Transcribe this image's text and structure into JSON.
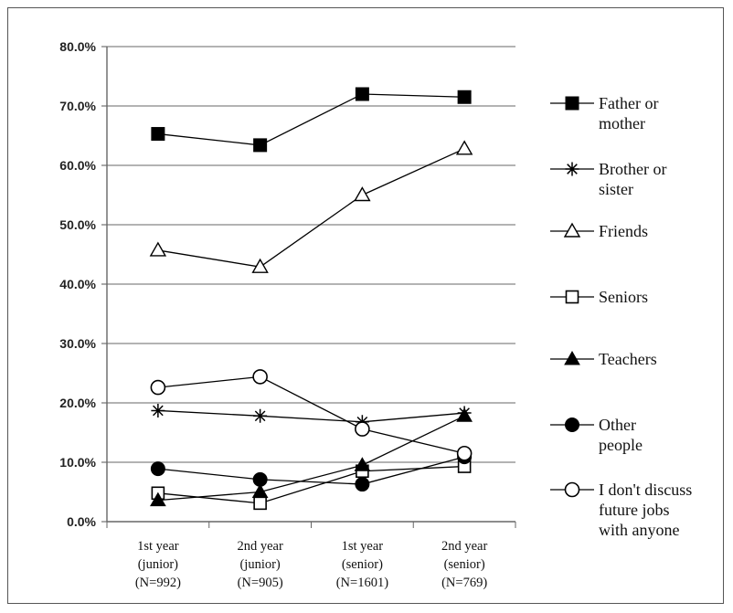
{
  "chart_data": {
    "type": "line",
    "title": "",
    "xlabel": "",
    "ylabel": "",
    "ylim": [
      0,
      80
    ],
    "y_ticks": [
      "0.0%",
      "10.0%",
      "20.0%",
      "30.0%",
      "40.0%",
      "50.0%",
      "60.0%",
      "70.0%",
      "80.0%"
    ],
    "grid": true,
    "legend_position": "right",
    "categories": [
      [
        "1st year",
        "(junior)",
        "(N=992)"
      ],
      [
        "2nd year",
        "(junior)",
        "(N=905)"
      ],
      [
        "1st year",
        "(senior)",
        "(N=1601)"
      ],
      [
        "2nd year",
        "(senior)",
        "(N=769)"
      ]
    ],
    "series": [
      {
        "name": "Father or mother",
        "legend_lines": [
          "Father or",
          "mother"
        ],
        "marker": "filled-square",
        "values": [
          65.3,
          63.4,
          72.0,
          71.5
        ]
      },
      {
        "name": "Brother or sister",
        "legend_lines": [
          "Brother or",
          "sister"
        ],
        "marker": "star",
        "values": [
          18.7,
          17.8,
          16.8,
          18.3
        ]
      },
      {
        "name": "Friends",
        "legend_lines": [
          "Friends"
        ],
        "marker": "open-triangle",
        "values": [
          45.7,
          42.9,
          55.0,
          62.8
        ]
      },
      {
        "name": "Seniors",
        "legend_lines": [
          "Seniors"
        ],
        "marker": "open-square",
        "values": [
          4.8,
          3.1,
          8.5,
          9.3
        ]
      },
      {
        "name": "Teachers",
        "legend_lines": [
          "Teachers"
        ],
        "marker": "filled-triangle",
        "values": [
          3.6,
          5.0,
          9.5,
          17.8
        ]
      },
      {
        "name": "Other people",
        "legend_lines": [
          "Other",
          "people"
        ],
        "marker": "filled-circle",
        "values": [
          8.9,
          7.1,
          6.3,
          10.9
        ]
      },
      {
        "name": "I don't discuss future jobs with anyone",
        "legend_lines": [
          "I don't discuss",
          "future jobs",
          "with anyone"
        ],
        "marker": "open-circle",
        "values": [
          22.6,
          24.4,
          15.6,
          11.5
        ]
      }
    ]
  }
}
